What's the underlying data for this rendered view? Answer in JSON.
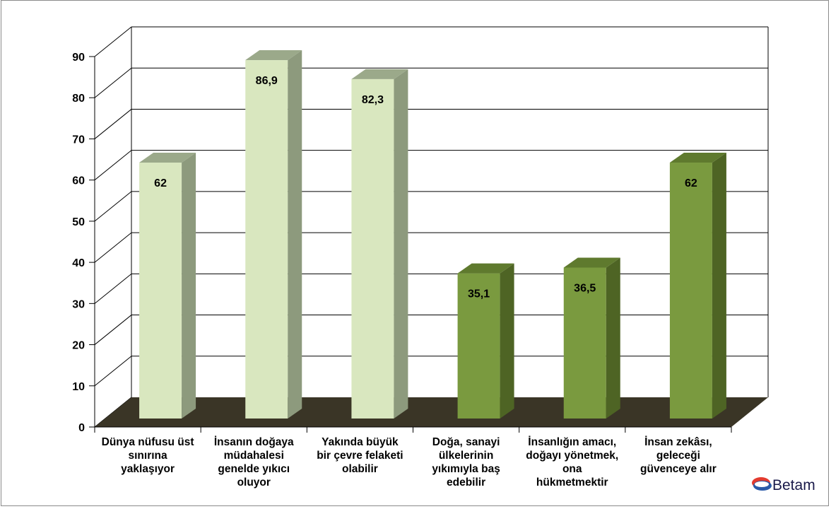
{
  "chart_data": {
    "type": "bar",
    "title": "",
    "xlabel": "",
    "ylabel": "",
    "ylim": [
      0,
      90
    ],
    "yticks": [
      0,
      10,
      20,
      30,
      40,
      50,
      60,
      70,
      80,
      90
    ],
    "categories": [
      "Dünya nüfusu üst\nsınırına\nyaklaşıyor",
      "İnsanın doğaya\nmüdahalesi\ngenelde yıkıcı\noluyor",
      "Yakında büyük\nbir çevre felaketi\nolabilir",
      "Doğa, sanayi\nülkelerinin\nyıkımıyla baş\nedebilir",
      "İnsanlığın amacı,\ndoğayı yönetmek,\nona\nhükmetmektir",
      "İnsan zekâsı,\ngeleceği\ngüvenceye alır"
    ],
    "values": [
      62,
      86.9,
      82.3,
      35.1,
      36.5,
      62
    ],
    "data_labels": [
      "62",
      "86,9",
      "82,3",
      "35,1",
      "36,5",
      "62"
    ],
    "colors": {
      "light_front": "#d9e7bf",
      "light_top": "#9ba98a",
      "light_side": "#8d9a7d",
      "dark_front": "#7a9a3f",
      "dark_top": "#5f7a2e",
      "dark_side": "#4e6424",
      "floor": "#3a3526",
      "grid": "#000000"
    },
    "bar_color_groups": [
      "light",
      "light",
      "light",
      "dark",
      "dark",
      "dark"
    ]
  },
  "logo": {
    "text": "Betam"
  }
}
